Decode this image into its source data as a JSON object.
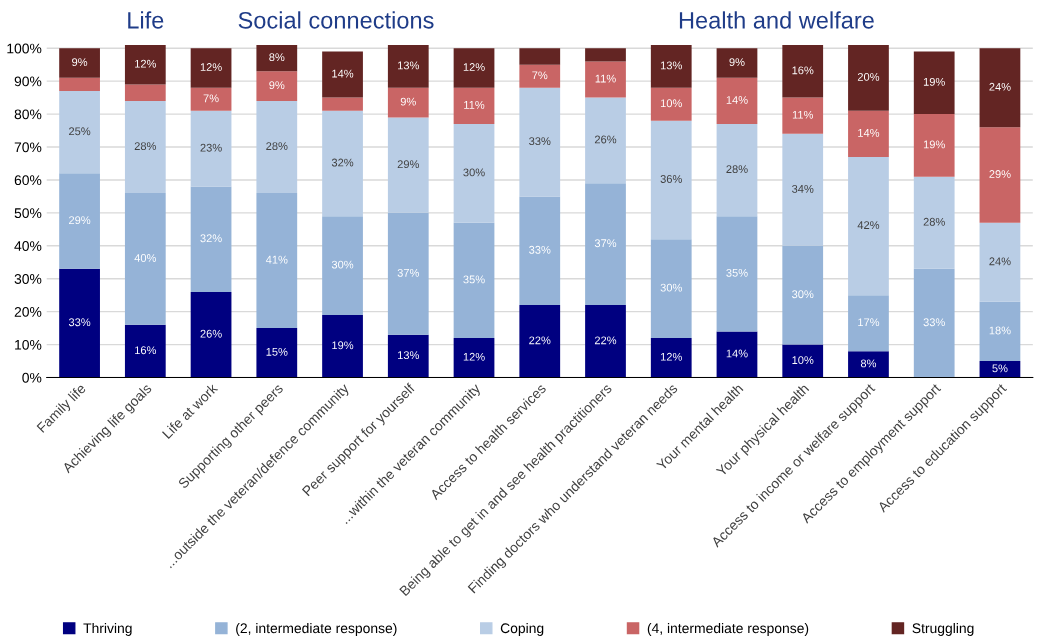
{
  "chart_data": {
    "type": "bar",
    "stacked": true,
    "grid": "y",
    "legend": "bottom",
    "categories": [
      "Family life",
      "Achieving life goals",
      "Life at work",
      "Supporting other peers",
      "...outside the veteran/defence community",
      "Peer support for yourself",
      "...within the veteran community",
      "Access to health services",
      "Being able to get in and see health practitioners",
      "Finding doctors who understand veteran needs",
      "Your mental health",
      "Your physical health",
      "Access to income or welfare support",
      "Access to employment support",
      "Access to education support"
    ],
    "series": [
      {
        "name": "Thriving",
        "color": "#000080",
        "values": [
          33,
          16,
          26,
          15,
          19,
          13,
          12,
          22,
          22,
          12,
          14,
          10,
          8,
          null,
          5
        ],
        "value_labels": [
          "33%",
          "16%",
          "26%",
          "15%",
          "19%",
          "13%",
          "12%",
          "22%",
          "22%",
          "12%",
          "14%",
          "10%",
          "8%",
          null,
          "5%"
        ]
      },
      {
        "name": "(2, intermediate response)",
        "color": "#95b3d7",
        "values": [
          29,
          40,
          32,
          41,
          30,
          37,
          35,
          33,
          37,
          30,
          35,
          30,
          17,
          33,
          18
        ],
        "value_labels": [
          "29%",
          "40%",
          "32%",
          "41%",
          "30%",
          "37%",
          "35%",
          "33%",
          "37%",
          "30%",
          "35%",
          "30%",
          "17%",
          "33%",
          "18%"
        ]
      },
      {
        "name": "Coping",
        "color": "#b9cde5",
        "values": [
          25,
          28,
          23,
          28,
          32,
          29,
          30,
          33,
          26,
          36,
          28,
          34,
          42,
          28,
          24
        ],
        "value_labels": [
          "25%",
          "28%",
          "23%",
          "28%",
          "32%",
          "29%",
          "30%",
          "33%",
          "26%",
          "36%",
          "28%",
          "34%",
          "42%",
          "28%",
          "24%"
        ]
      },
      {
        "name": "(4, intermediate response)",
        "color": "#c96565",
        "values": [
          4,
          5,
          7,
          9,
          4,
          9,
          11,
          7,
          11,
          10,
          14,
          11,
          14,
          19,
          29
        ],
        "value_labels": [
          null,
          null,
          "7%",
          "9%",
          null,
          "9%",
          "11%",
          "7%",
          "11%",
          "10%",
          "14%",
          "11%",
          "14%",
          "19%",
          "29%"
        ]
      },
      {
        "name": "Struggling",
        "color": "#632523",
        "values": [
          9,
          12,
          12,
          8,
          14,
          13,
          12,
          5,
          4,
          13,
          9,
          16,
          20,
          19,
          24
        ],
        "value_labels": [
          "9%",
          "12%",
          "12%",
          "8%",
          "14%",
          "13%",
          "12%",
          null,
          null,
          "13%",
          "9%",
          "16%",
          "20%",
          "19%",
          "24%"
        ]
      }
    ],
    "ylim": [
      0,
      101
    ],
    "yticks": [
      {
        "value": 0,
        "label": "0%"
      },
      {
        "value": 10,
        "label": "10%"
      },
      {
        "value": 20,
        "label": "20%"
      },
      {
        "value": 30,
        "label": "30%"
      },
      {
        "value": 40,
        "label": "40%"
      },
      {
        "value": 50,
        "label": "50%"
      },
      {
        "value": 60,
        "label": "60%"
      },
      {
        "value": 70,
        "label": "70%"
      },
      {
        "value": 80,
        "label": "80%"
      },
      {
        "value": 90,
        "label": "90%"
      },
      {
        "value": 100,
        "label": "100%"
      }
    ],
    "annotations": [
      "Life",
      "Social connections",
      "Health and welfare"
    ]
  }
}
